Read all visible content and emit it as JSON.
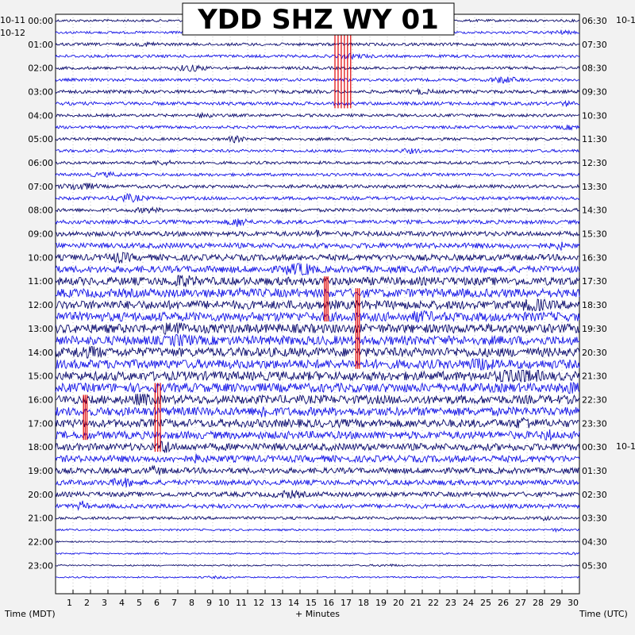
{
  "title": "YDD SHZ WY 01",
  "colors": {
    "background": "#f2f2f2",
    "plot_background": "#ffffff",
    "trace_dark": "#0b0b6e",
    "trace_blue": "#1414e6",
    "event_marker": "#e00000",
    "grid": "#999999"
  },
  "chart_data": {
    "type": "helicorder",
    "title": "YDD SHZ WY 01",
    "xlabel": "+ Minutes",
    "x_ticks": [
      1,
      2,
      3,
      4,
      5,
      6,
      7,
      8,
      9,
      10,
      11,
      12,
      13,
      14,
      15,
      16,
      17,
      18,
      19,
      20,
      21,
      22,
      23,
      24,
      25,
      26,
      27,
      28,
      29,
      30
    ],
    "xlim": [
      0,
      30
    ],
    "left_axis_title": "Time (MDT)",
    "right_axis_title": "Time (UTC)",
    "left_date_labels": [
      "10-11",
      "10-12"
    ],
    "right_date_labels": [
      "10-1",
      "10-1"
    ],
    "left_hour_labels": [
      "00:00",
      "01:00",
      "02:00",
      "03:00",
      "04:00",
      "05:00",
      "06:00",
      "07:00",
      "08:00",
      "09:00",
      "10:00",
      "11:00",
      "12:00",
      "13:00",
      "14:00",
      "15:00",
      "16:00",
      "17:00",
      "18:00",
      "19:00",
      "20:00",
      "21:00",
      "22:00",
      "23:00"
    ],
    "right_hour_labels": [
      "06:30",
      "07:30",
      "08:30",
      "09:30",
      "10:30",
      "11:30",
      "12:30",
      "13:30",
      "14:30",
      "15:30",
      "16:30",
      "17:30",
      "18:30",
      "19:30",
      "20:30",
      "21:30",
      "22:30",
      "23:30",
      "00:30",
      "01:30",
      "02:30",
      "03:30",
      "04:30",
      "05:30"
    ],
    "rows_per_hour": 2,
    "row_count": 48,
    "row_noise_level": [
      0.25,
      0.25,
      0.3,
      0.3,
      0.3,
      0.3,
      0.35,
      0.35,
      0.3,
      0.3,
      0.3,
      0.3,
      0.3,
      0.3,
      0.35,
      0.35,
      0.35,
      0.4,
      0.5,
      0.55,
      0.65,
      0.7,
      0.85,
      0.9,
      0.9,
      0.95,
      0.95,
      0.95,
      0.95,
      0.95,
      0.95,
      0.95,
      0.9,
      0.9,
      0.85,
      0.8,
      0.75,
      0.7,
      0.6,
      0.55,
      0.5,
      0.45,
      0.3,
      0.2,
      0.15,
      0.15,
      0.15,
      0.15
    ],
    "highlighted_events": [
      {
        "row_start": 0,
        "row_end": 7,
        "minute_start": 16.0,
        "minute_end": 16.9
      },
      {
        "row_start": 22,
        "row_end": 25,
        "minute_start": 15.4,
        "minute_end": 15.6
      },
      {
        "row_start": 23,
        "row_end": 29,
        "minute_start": 17.2,
        "minute_end": 17.4
      },
      {
        "row_start": 31,
        "row_end": 36,
        "minute_start": 5.7,
        "minute_end": 6.0
      },
      {
        "row_start": 32,
        "row_end": 35,
        "minute_start": 1.6,
        "minute_end": 1.8
      }
    ]
  }
}
